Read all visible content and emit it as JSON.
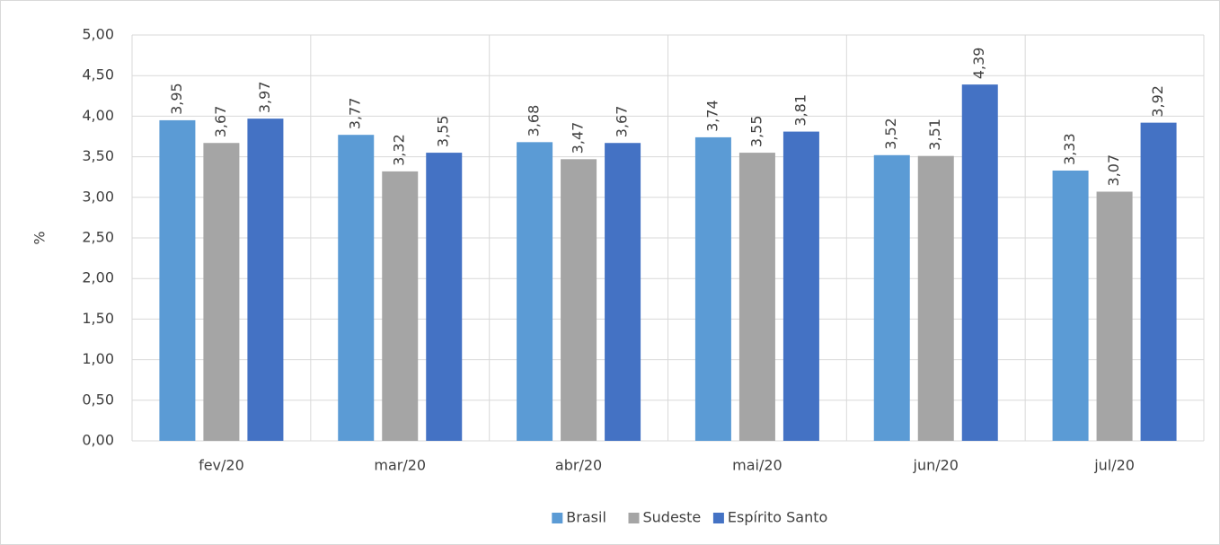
{
  "chart_data": {
    "type": "bar",
    "y_label": "%",
    "categories": [
      "fev/20",
      "mar/20",
      "abr/20",
      "mai/20",
      "jun/20",
      "jul/20"
    ],
    "series": [
      {
        "name": "Brasil",
        "color": "#5b9bd5",
        "values": [
          3.95,
          3.77,
          3.68,
          3.74,
          3.52,
          3.33
        ],
        "value_labels": [
          "3,95",
          "3,77",
          "3,68",
          "3,74",
          "3,52",
          "3,33"
        ]
      },
      {
        "name": "Sudeste",
        "color": "#a5a5a5",
        "values": [
          3.67,
          3.32,
          3.47,
          3.55,
          3.51,
          3.07
        ],
        "value_labels": [
          "3,67",
          "3,32",
          "3,47",
          "3,55",
          "3,51",
          "3,07"
        ]
      },
      {
        "name": "Espírito Santo",
        "color": "#4472c4",
        "values": [
          3.97,
          3.55,
          3.67,
          3.81,
          4.39,
          3.92
        ],
        "value_labels": [
          "3,97",
          "3,55",
          "3,67",
          "3,81",
          "4,39",
          "3,92"
        ]
      }
    ],
    "ylim": [
      0,
      5
    ],
    "yticks": [
      {
        "value": 0,
        "label": "0,00"
      },
      {
        "value": 0.5,
        "label": "0,50"
      },
      {
        "value": 1,
        "label": "1,00"
      },
      {
        "value": 1.5,
        "label": "1,50"
      },
      {
        "value": 2,
        "label": "2,00"
      },
      {
        "value": 2.5,
        "label": "2,50"
      },
      {
        "value": 3,
        "label": "3,00"
      },
      {
        "value": 3.5,
        "label": "3,50"
      },
      {
        "value": 4,
        "label": "4,00"
      },
      {
        "value": 4.5,
        "label": "4,50"
      },
      {
        "value": 5,
        "label": "5,00"
      }
    ],
    "grid": true,
    "legend": "bottom"
  }
}
